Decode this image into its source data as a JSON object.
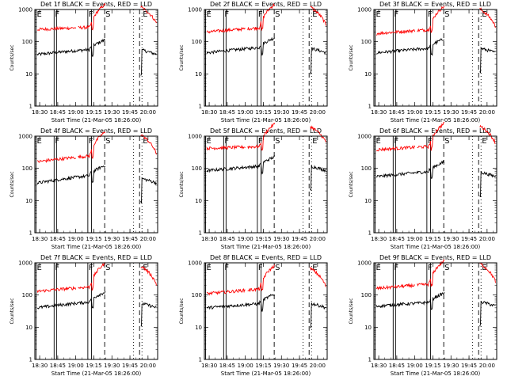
{
  "chart_data": {
    "type": "line",
    "panels": [
      {
        "title": "Det 1f BLACK = Events, RED = LLD",
        "events": [
          40,
          65
        ],
        "lld": [
          240,
          300
        ],
        "xticks": [
          "18:30",
          "18:45",
          "19:00",
          "19:15",
          "19:30",
          "19:45",
          "20:00"
        ]
      },
      {
        "title": "Det 2f BLACK = Events, RED = LLD",
        "events": [
          45,
          75
        ],
        "lld": [
          200,
          300
        ],
        "xticks": [
          "18:30",
          "18:45",
          "19:00",
          "19:15",
          "19:30",
          "19:45",
          "20:00"
        ]
      },
      {
        "title": "Det 3f BLACK = Events, RED = LLD",
        "events": [
          45,
          70
        ],
        "lld": [
          180,
          260
        ],
        "xticks": [
          "18:30",
          "18:45",
          "19:00",
          "19:15",
          "19:30",
          "19:45",
          "20:00"
        ]
      },
      {
        "title": "Det 4f BLACK = Events, RED = LLD",
        "events": [
          35,
          70
        ],
        "lld": [
          160,
          280
        ],
        "xticks": [
          "18:30",
          "18:45",
          "19:00",
          "19:15",
          "19:30",
          "19:45",
          "20:00"
        ]
      },
      {
        "title": "Det 5f BLACK = Events, RED = LLD",
        "events": [
          85,
          130
        ],
        "lld": [
          420,
          500
        ],
        "xticks": [
          "18:30",
          "18:45",
          "19:00",
          "19:15",
          "19:30",
          "19:45",
          "20:00"
        ]
      },
      {
        "title": "Det 6f BLACK = Events, RED = LLD",
        "events": [
          55,
          90
        ],
        "lld": [
          380,
          520
        ],
        "xticks": [
          "18:30",
          "18:45",
          "19:00",
          "19:15",
          "19:30",
          "19:45",
          "20:00"
        ]
      },
      {
        "title": "Det 7f BLACK = Events, RED = LLD",
        "events": [
          40,
          70
        ],
        "lld": [
          130,
          200
        ],
        "xticks": [
          "18:30",
          "18:45",
          "19:00",
          "19:15",
          "19:30",
          "19:45",
          "20:00"
        ]
      },
      {
        "title": "Det 8f BLACK = Events, RED = LLD",
        "events": [
          40,
          60
        ],
        "lld": [
          110,
          170
        ],
        "xticks": [
          "18:30",
          "18:45",
          "19:00",
          "19:15",
          "19:30",
          "19:45",
          "20:00"
        ]
      },
      {
        "title": "Det 9f BLACK = Events, RED = LLD",
        "events": [
          45,
          65
        ],
        "lld": [
          160,
          240
        ],
        "xticks": [
          "18:30",
          "18:45",
          "19:00",
          "19:15",
          "19:30",
          "19:45",
          "20:00"
        ]
      }
    ],
    "yticks": [
      "1",
      "10",
      "100",
      "1000"
    ],
    "ylim": [
      1,
      1000
    ],
    "xlim": [
      "18:26",
      "20:08"
    ],
    "ylabel": "Counts/sec",
    "xlabel": "Start Time (21-Mar-05 18:26:00)",
    "series": [
      {
        "name": "Events",
        "color": "#000000"
      },
      {
        "name": "LLD",
        "color": "#ff0000"
      }
    ],
    "markers": [
      {
        "label": "E",
        "time": "18:27",
        "style": "solid"
      },
      {
        "label": "F",
        "time": "18:42",
        "style": "solid"
      },
      {
        "label": "F",
        "time": "19:10",
        "style": "solid"
      },
      {
        "label": "S",
        "time": "19:24",
        "style": "dashed"
      },
      {
        "label": "E",
        "time": "19:55",
        "style": "dotted"
      }
    ],
    "extra_lines": [
      {
        "time": "18:44",
        "style": "solid"
      },
      {
        "time": "19:13",
        "style": "solid"
      },
      {
        "time": "19:48",
        "style": "dotted"
      },
      {
        "time": "19:53",
        "style": "dashed"
      }
    ]
  }
}
